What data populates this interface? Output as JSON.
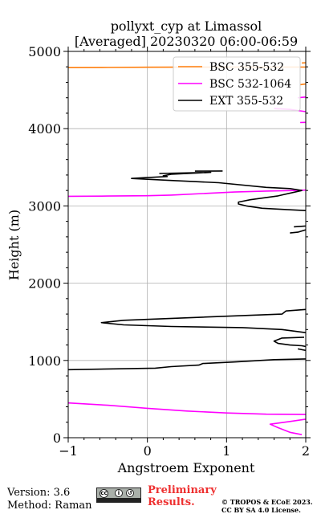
{
  "chart_data": {
    "type": "line",
    "title": [
      "pollyxt_cyp at Limassol",
      "[Averaged] 20230320 06:00-06:59"
    ],
    "xlabel": "Angstroem Exponent",
    "ylabel": "Height (m)",
    "xlim": [
      -1,
      2
    ],
    "ylim": [
      0,
      5000
    ],
    "x_ticks": [
      -1,
      0,
      1,
      2
    ],
    "x_tick_labels": [
      "−1",
      "0",
      "1",
      "2"
    ],
    "y_ticks": [
      0,
      1000,
      2000,
      3000,
      4000,
      5000
    ],
    "y_tick_labels": [
      "0",
      "1000",
      "2000",
      "3000",
      "4000",
      "5000"
    ],
    "grid": true,
    "legend_position": "top-right",
    "series": [
      {
        "name": "BSC 355-532",
        "color": "#ff7f0e",
        "segments": [
          [
            [
              -1.0,
              4790
            ],
            [
              -0.5,
              4792
            ],
            [
              0.0,
              4795
            ],
            [
              0.5,
              4796
            ],
            [
              1.0,
              4797
            ],
            [
              1.5,
              4797
            ],
            [
              2.0,
              4797
            ]
          ],
          [
            [
              1.95,
              4850
            ],
            [
              2.0,
              4852
            ]
          ],
          [
            [
              1.93,
              4570
            ],
            [
              1.97,
              4575
            ],
            [
              2.0,
              4578
            ]
          ]
        ]
      },
      {
        "name": "BSC 532-1064",
        "color": "#ff00ff",
        "segments": [
          [
            [
              -1.0,
              3125
            ],
            [
              -0.5,
              3128
            ],
            [
              0.0,
              3132
            ],
            [
              0.3,
              3140
            ],
            [
              0.7,
              3160
            ],
            [
              1.1,
              3180
            ],
            [
              1.5,
              3192
            ],
            [
              1.85,
              3200
            ],
            [
              2.0,
              3205
            ]
          ],
          [
            [
              1.9,
              4400
            ],
            [
              2.0,
              4410
            ]
          ],
          [
            [
              1.6,
              4260
            ],
            [
              1.8,
              4250
            ],
            [
              2.0,
              4220
            ]
          ],
          [
            [
              1.93,
              4080
            ],
            [
              2.0,
              4082
            ]
          ],
          [
            [
              -1.0,
              450
            ],
            [
              -0.5,
              420
            ],
            [
              0.0,
              380
            ],
            [
              0.5,
              345
            ],
            [
              1.0,
              320
            ],
            [
              1.5,
              305
            ],
            [
              2.0,
              300
            ]
          ],
          [
            [
              2.0,
              240
            ],
            [
              1.8,
              210
            ],
            [
              1.55,
              175
            ],
            [
              1.65,
              130
            ],
            [
              1.8,
              70
            ],
            [
              1.95,
              40
            ]
          ]
        ]
      },
      {
        "name": "EXT 355-532",
        "color": "#000000",
        "segments": [
          [
            [
              0.6,
              3450
            ],
            [
              0.95,
              3452
            ]
          ],
          [
            [
              0.15,
              3420
            ],
            [
              0.8,
              3435
            ],
            [
              0.3,
              3410
            ],
            [
              0.2,
              3390
            ],
            [
              0.25,
              3380
            ],
            [
              -0.05,
              3365
            ],
            [
              -0.2,
              3355
            ],
            [
              0.3,
              3330
            ],
            [
              0.9,
              3300
            ],
            [
              1.5,
              3240
            ],
            [
              1.8,
              3225
            ],
            [
              1.95,
              3200
            ],
            [
              1.65,
              3130
            ],
            [
              1.3,
              3080
            ],
            [
              1.15,
              3050
            ],
            [
              1.15,
              3025
            ],
            [
              1.25,
              3000
            ],
            [
              1.45,
              2970
            ],
            [
              1.8,
              2950
            ],
            [
              2.0,
              2940
            ]
          ],
          [
            [
              1.8,
              2650
            ],
            [
              1.9,
              2660
            ],
            [
              2.0,
              2690
            ]
          ],
          [
            [
              1.85,
              2730
            ],
            [
              2.0,
              2740
            ]
          ],
          [
            [
              2.0,
              1660
            ],
            [
              1.75,
              1640
            ],
            [
              1.7,
              1600
            ],
            [
              0.7,
              1560
            ],
            [
              -0.3,
              1520
            ],
            [
              -0.58,
              1490
            ],
            [
              -0.3,
              1460
            ],
            [
              0.3,
              1440
            ],
            [
              1.2,
              1425
            ],
            [
              1.7,
              1400
            ],
            [
              2.0,
              1360
            ]
          ],
          [
            [
              1.98,
              1300
            ],
            [
              1.7,
              1290
            ],
            [
              1.6,
              1250
            ],
            [
              1.65,
              1220
            ],
            [
              1.8,
              1200
            ],
            [
              1.95,
              1190
            ],
            [
              2.0,
              1180
            ]
          ],
          [
            [
              1.9,
              1150
            ],
            [
              2.0,
              1130
            ]
          ],
          [
            [
              2.0,
              1020
            ],
            [
              1.6,
              1010
            ],
            [
              1.1,
              980
            ],
            [
              0.7,
              960
            ],
            [
              0.65,
              940
            ],
            [
              0.3,
              920
            ],
            [
              0.1,
              900
            ],
            [
              -0.5,
              890
            ],
            [
              -1.0,
              880
            ]
          ]
        ]
      }
    ]
  },
  "footer": {
    "version": "Version: 3.6",
    "method": "Method: Raman",
    "preliminary": [
      "Preliminary",
      "Results."
    ],
    "copyright": [
      "© TROPOS & ECoE 2023.",
      "CC BY SA 4.0 License."
    ],
    "license_badge_icons": [
      "cc-icon",
      "by-icon",
      "sa-icon"
    ]
  }
}
